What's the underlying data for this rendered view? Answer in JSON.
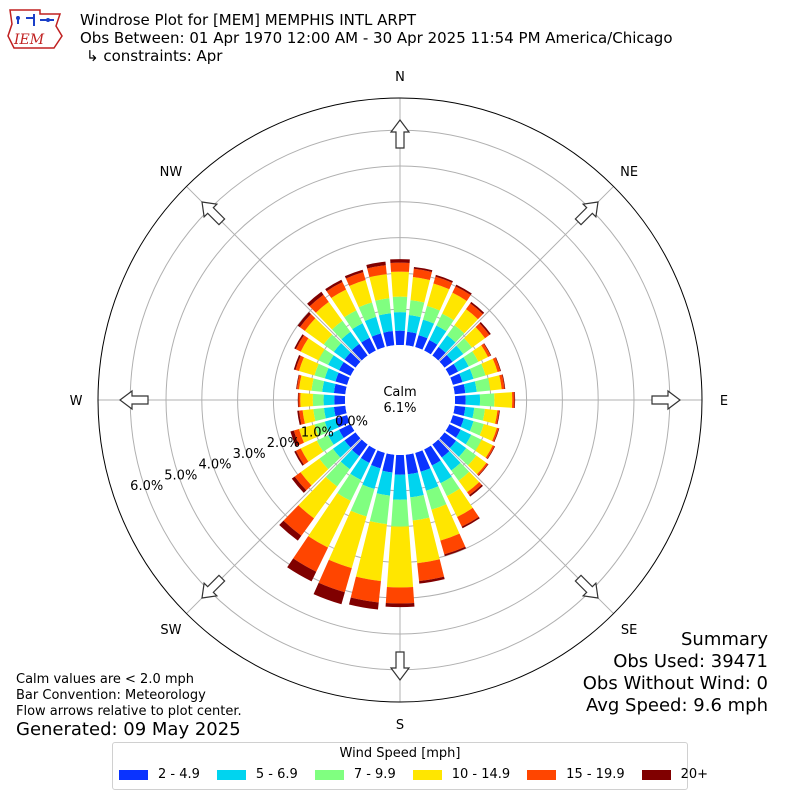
{
  "header": {
    "title": "Windrose Plot for [MEM] MEMPHIS INTL ARPT",
    "subtitle": "Obs Between: 01 Apr 1970 12:00 AM - 30 Apr 2025 11:54 PM America/Chicago",
    "constraints": "↳ constraints: Apr",
    "logo_text": "IEM"
  },
  "summary": {
    "title": "Summary",
    "obs_used": "Obs Used: 39471",
    "obs_without_wind": "Obs Without Wind: 0",
    "avg_speed": "Avg Speed: 9.6 mph"
  },
  "notes": {
    "calm_note": "Calm values are < 2.0 mph",
    "bar_convention": "Bar Convention: Meteorology",
    "flow_arrows": "Flow arrows relative to plot center.",
    "generated": "Generated: 09 May 2025"
  },
  "legend": {
    "title": "Wind Speed [mph]",
    "items": [
      {
        "label": "2 - 4.9",
        "color": "#0a33ff"
      },
      {
        "label": "5 - 6.9",
        "color": "#00d4ef"
      },
      {
        "label": "7 - 9.9",
        "color": "#80ff80"
      },
      {
        "label": "10 - 14.9",
        "color": "#ffe600"
      },
      {
        "label": "15 - 19.9",
        "color": "#ff4500"
      },
      {
        "label": "20+",
        "color": "#800000"
      }
    ]
  },
  "chart_data": {
    "type": "windrose",
    "calm": {
      "label": "Calm",
      "value_label": "6.1%",
      "value": 6.1
    },
    "radial_ticks": [
      0,
      1,
      2,
      3,
      4,
      5,
      6
    ],
    "radial_tick_labels": [
      "0.0%",
      "1.0%",
      "2.0%",
      "3.0%",
      "4.0%",
      "5.0%",
      "6.0%"
    ],
    "rmax": 6.9,
    "compass_labels": [
      "N",
      "NE",
      "E",
      "SE",
      "S",
      "SW",
      "W",
      "NW"
    ],
    "directions": [
      0,
      10,
      20,
      30,
      40,
      50,
      60,
      70,
      80,
      90,
      100,
      110,
      120,
      130,
      140,
      150,
      160,
      170,
      180,
      190,
      200,
      210,
      220,
      230,
      240,
      250,
      260,
      270,
      280,
      290,
      300,
      310,
      320,
      330,
      340,
      350
    ],
    "bins": [
      "2 - 4.9",
      "5 - 6.9",
      "7 - 9.9",
      "10 - 14.9",
      "15 - 19.9",
      "20+"
    ],
    "cumulative": [
      [
        0.4,
        0.92,
        1.35,
        2.05,
        2.3,
        2.4
      ],
      [
        0.38,
        0.85,
        1.27,
        1.92,
        2.15,
        2.2
      ],
      [
        0.35,
        0.8,
        1.2,
        1.85,
        2.05,
        2.1
      ],
      [
        0.33,
        0.78,
        1.15,
        1.8,
        2.0,
        2.05
      ],
      [
        0.3,
        0.7,
        1.05,
        1.6,
        1.8,
        1.85
      ],
      [
        0.28,
        0.65,
        0.95,
        1.4,
        1.55,
        1.6
      ],
      [
        0.27,
        0.6,
        0.9,
        1.2,
        1.28,
        1.3
      ],
      [
        0.28,
        0.6,
        0.95,
        1.3,
        1.38,
        1.4
      ],
      [
        0.3,
        0.62,
        1.0,
        1.32,
        1.4,
        1.42
      ],
      [
        0.3,
        0.7,
        1.1,
        1.6,
        1.66,
        1.68
      ],
      [
        0.3,
        0.55,
        0.85,
        1.2,
        1.25,
        1.27
      ],
      [
        0.32,
        0.6,
        0.9,
        1.28,
        1.33,
        1.35
      ],
      [
        0.35,
        0.68,
        1.0,
        1.35,
        1.4,
        1.42
      ],
      [
        0.4,
        0.75,
        1.1,
        1.45,
        1.5,
        1.52
      ],
      [
        0.45,
        0.9,
        1.25,
        1.65,
        1.75,
        1.8
      ],
      [
        0.5,
        1.05,
        1.45,
        2.1,
        2.4,
        2.45
      ],
      [
        0.55,
        1.1,
        1.65,
        2.55,
        2.95,
        3.0
      ],
      [
        0.55,
        1.2,
        1.85,
        3.05,
        3.55,
        3.62
      ],
      [
        0.55,
        1.25,
        2.0,
        3.7,
        4.15,
        4.25
      ],
      [
        0.5,
        1.15,
        1.95,
        3.55,
        4.15,
        4.35
      ],
      [
        0.45,
        1.05,
        1.85,
        3.35,
        4.05,
        4.4
      ],
      [
        0.42,
        0.95,
        1.6,
        3.05,
        3.8,
        4.1
      ],
      [
        0.4,
        0.85,
        1.45,
        2.55,
        3.15,
        3.32
      ],
      [
        0.38,
        0.78,
        1.25,
        1.9,
        2.1,
        2.2
      ],
      [
        0.36,
        0.7,
        1.05,
        1.55,
        1.7,
        1.75
      ],
      [
        0.34,
        0.65,
        0.95,
        1.4,
        1.55,
        1.65
      ],
      [
        0.32,
        0.6,
        0.9,
        1.2,
        1.3,
        1.35
      ],
      [
        0.3,
        0.6,
        0.9,
        1.25,
        1.3,
        1.32
      ],
      [
        0.32,
        0.65,
        0.95,
        1.3,
        1.36,
        1.38
      ],
      [
        0.34,
        0.65,
        0.95,
        1.4,
        1.5,
        1.55
      ],
      [
        0.36,
        0.7,
        1.0,
        1.55,
        1.7,
        1.75
      ],
      [
        0.38,
        0.75,
        1.1,
        1.75,
        1.92,
        2.0
      ],
      [
        0.4,
        0.82,
        1.2,
        1.85,
        2.1,
        2.2
      ],
      [
        0.4,
        0.85,
        1.25,
        1.9,
        2.13,
        2.2
      ],
      [
        0.4,
        0.88,
        1.3,
        1.95,
        2.18,
        2.25
      ],
      [
        0.4,
        0.9,
        1.32,
        2.0,
        2.25,
        2.35
      ]
    ],
    "arrow_color": "#ffffff"
  }
}
